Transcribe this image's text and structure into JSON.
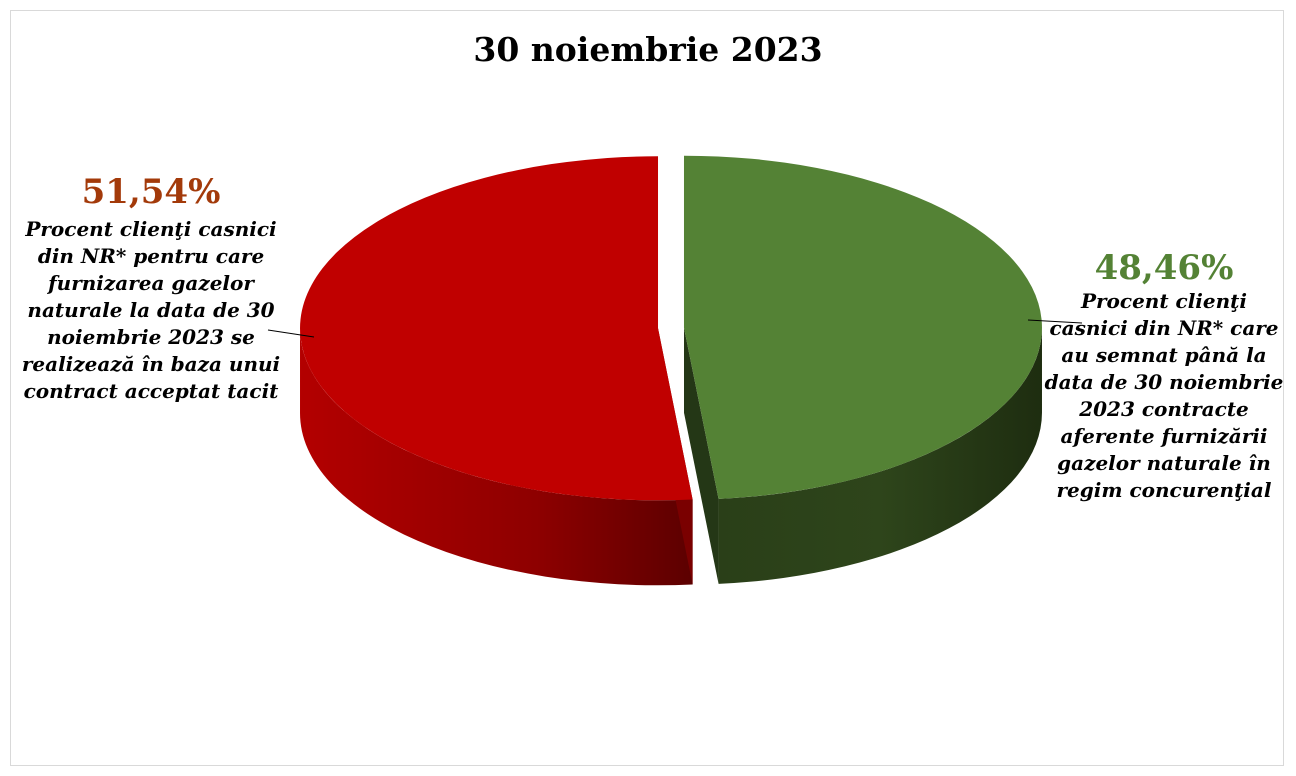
{
  "chart_data": {
    "type": "pie",
    "title": "30 noiembrie 2023",
    "slices": [
      {
        "label": "Procent clienţi casnici din NR* care au semnat până la data de 30 noiembrie 2023 contracte aferente furnizării gazelor naturale în regim concurenţial",
        "value": 48.46,
        "value_label": "48,46%",
        "color": "#548235",
        "label_color": "#548235"
      },
      {
        "label": "Procent clienţi casnici din NR* pentru care furnizarea gazelor naturale la data de 30 noiembrie 2023 se realizează în baza unui contract acceptat tacit",
        "value": 51.54,
        "value_label": "51,54%",
        "color": "#c00000",
        "label_color": "#a33a0a"
      }
    ],
    "style": "3d-exploded"
  }
}
